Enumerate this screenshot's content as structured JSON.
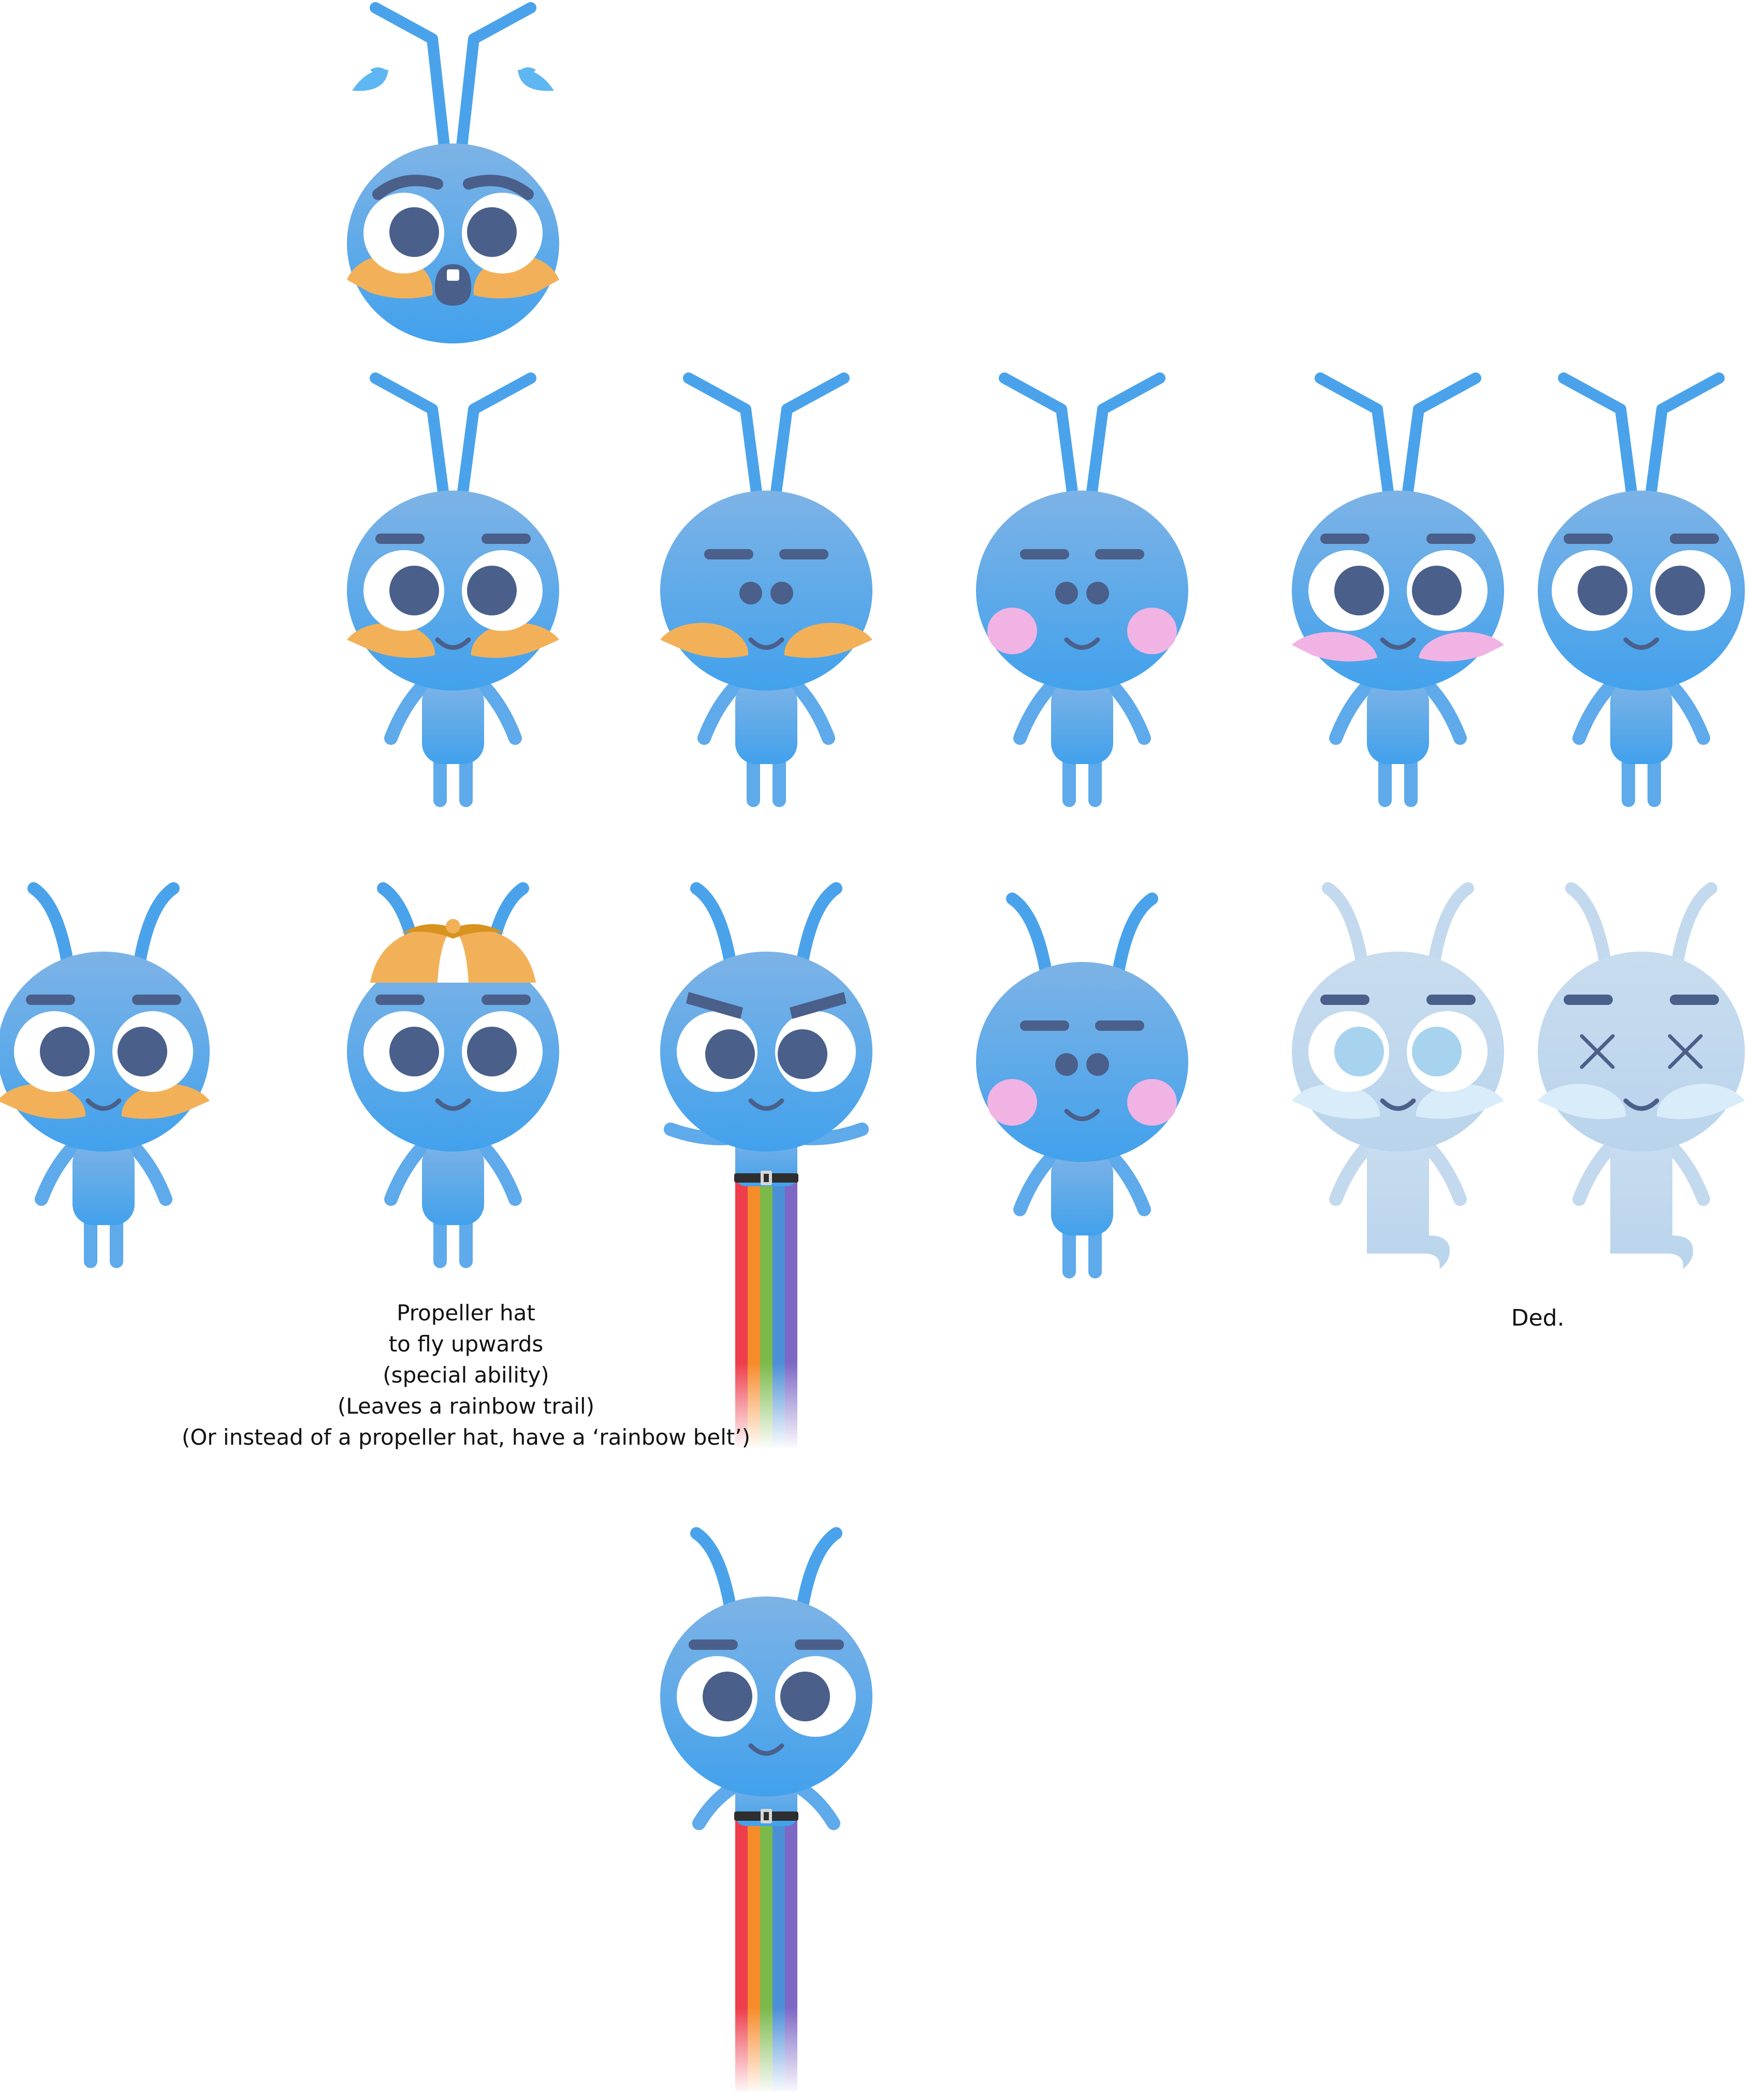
{
  "colors": {
    "body_top": "#7db3e6",
    "body_bottom": "#42a1ec",
    "limb": "#5eaaeb",
    "antenna": "#4aa3ea",
    "eye_pupil": "#4a5f8a",
    "brow": "#4a5f8a",
    "cheek_orange": "#f2b158",
    "cheek_pink": "#f1b3e3",
    "ghost_body": "#c3d9ee",
    "ghost_pupil": "#a7d3ee",
    "ghost_cheek": "#d9ecf9",
    "sweat": "#5eb6f2",
    "hat": "#f2b158",
    "belt": "#2e2e2e",
    "buckle": "#d7d7d7",
    "rainbow": [
      "#ee3d4c",
      "#f68b2a",
      "#7ab94a",
      "#4b8fd6",
      "#7d68c6"
    ]
  },
  "characters": [
    {
      "id": "worried-head",
      "variant": "head-only",
      "expression": "worried",
      "cheeks": "orange",
      "sweat_drops": true
    },
    {
      "id": "big-eyes-orange-cheeks",
      "variant": "standing",
      "eyes": "big",
      "cheeks": "orange"
    },
    {
      "id": "dot-eyes-orange-cheeks",
      "variant": "standing",
      "eyes": "dots",
      "cheeks": "orange"
    },
    {
      "id": "dot-eyes-pink-cheeks",
      "variant": "standing",
      "eyes": "dots",
      "cheeks": "pink"
    },
    {
      "id": "big-eyes-pink-cheeks",
      "variant": "standing",
      "eyes": "big",
      "cheeks": "pink"
    },
    {
      "id": "big-eyes-no-cheeks",
      "variant": "standing",
      "eyes": "big",
      "cheeks": "none"
    },
    {
      "id": "curved-antenna-orange-cheeks",
      "variant": "standing",
      "antenna": "curved",
      "eyes": "big",
      "cheeks": "orange"
    },
    {
      "id": "propeller-hat",
      "variant": "standing",
      "antenna": "curved",
      "eyes": "big",
      "accessory": "propeller-hat"
    },
    {
      "id": "angry-rainbow-belt",
      "variant": "rainbow-belt",
      "antenna": "curved",
      "expression": "angry"
    },
    {
      "id": "curved-antenna-pink-cheeks",
      "variant": "standing",
      "antenna": "curved",
      "eyes": "dots",
      "cheeks": "pink"
    },
    {
      "id": "ghost-open-eyes",
      "variant": "ghost",
      "eyes": "big"
    },
    {
      "id": "ghost-x-eyes",
      "variant": "ghost",
      "eyes": "x"
    },
    {
      "id": "rainbow-belt-final",
      "variant": "rainbow-belt",
      "antenna": "curved",
      "eyes": "big"
    }
  ],
  "notes": {
    "propeller": [
      "Propeller hat",
      "to fly upwards",
      "(special ability)",
      "(Leaves a rainbow trail)",
      "(Or instead of a propeller hat, have a ‘rainbow belt’)"
    ],
    "ded": "Ded."
  }
}
